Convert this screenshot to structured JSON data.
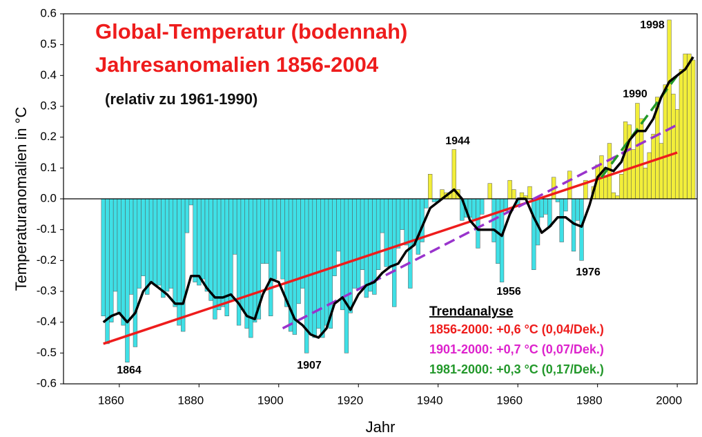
{
  "chart_data": {
    "type": "bar",
    "title": "Global-Temperatur (bodennah)",
    "title2": "Jahresanomalien 1856-2004",
    "subtitle": "(relativ zu 1961-1990)",
    "ylabel": "Temperaturanomalien in °C",
    "xlabel": "Jahr",
    "positive_color": "#f2ee3a",
    "negative_color": "#3fe0e6",
    "xlim": [
      1846,
      2005
    ],
    "ylim": [
      -0.6,
      0.6
    ],
    "xticks": [
      1860,
      1880,
      1900,
      1920,
      1940,
      1960,
      1980,
      2000
    ],
    "yticks": [
      0.6,
      0.5,
      0.4,
      0.3,
      0.2,
      0.1,
      {
        "value": 0,
        "label": "0.0"
      },
      -0.1,
      -0.2,
      -0.3,
      -0.4,
      -0.5,
      -0.6
    ],
    "x": [
      1856,
      1857,
      1858,
      1859,
      1860,
      1861,
      1862,
      1863,
      1864,
      1865,
      1866,
      1867,
      1868,
      1869,
      1870,
      1871,
      1872,
      1873,
      1874,
      1875,
      1876,
      1877,
      1878,
      1879,
      1880,
      1881,
      1882,
      1883,
      1884,
      1885,
      1886,
      1887,
      1888,
      1889,
      1890,
      1891,
      1892,
      1893,
      1894,
      1895,
      1896,
      1897,
      1898,
      1899,
      1900,
      1901,
      1902,
      1903,
      1904,
      1905,
      1906,
      1907,
      1908,
      1909,
      1910,
      1911,
      1912,
      1913,
      1914,
      1915,
      1916,
      1917,
      1918,
      1919,
      1920,
      1921,
      1922,
      1923,
      1924,
      1925,
      1926,
      1927,
      1928,
      1929,
      1930,
      1931,
      1932,
      1933,
      1934,
      1935,
      1936,
      1937,
      1938,
      1939,
      1940,
      1941,
      1942,
      1943,
      1944,
      1945,
      1946,
      1947,
      1948,
      1949,
      1950,
      1951,
      1952,
      1953,
      1954,
      1955,
      1956,
      1957,
      1958,
      1959,
      1960,
      1961,
      1962,
      1963,
      1964,
      1965,
      1966,
      1967,
      1968,
      1969,
      1970,
      1971,
      1972,
      1973,
      1974,
      1975,
      1976,
      1977,
      1978,
      1979,
      1980,
      1981,
      1982,
      1983,
      1984,
      1985,
      1986,
      1987,
      1988,
      1989,
      1990,
      1991,
      1992,
      1993,
      1994,
      1995,
      1996,
      1997,
      1998,
      1999,
      2000,
      2001,
      2002,
      2003,
      2004
    ],
    "values": [
      -0.38,
      -0.47,
      -0.4,
      -0.3,
      -0.37,
      -0.41,
      -0.53,
      -0.31,
      -0.48,
      -0.29,
      -0.25,
      -0.31,
      -0.27,
      -0.28,
      -0.28,
      -0.32,
      -0.3,
      -0.29,
      -0.35,
      -0.41,
      -0.43,
      -0.11,
      -0.02,
      -0.27,
      -0.28,
      -0.26,
      -0.3,
      -0.33,
      -0.39,
      -0.36,
      -0.35,
      -0.38,
      -0.33,
      -0.18,
      -0.41,
      -0.36,
      -0.42,
      -0.45,
      -0.4,
      -0.39,
      -0.21,
      -0.21,
      -0.38,
      -0.26,
      -0.17,
      -0.26,
      -0.35,
      -0.43,
      -0.44,
      -0.34,
      -0.29,
      -0.5,
      -0.44,
      -0.45,
      -0.42,
      -0.45,
      -0.41,
      -0.42,
      -0.25,
      -0.17,
      -0.36,
      -0.5,
      -0.37,
      -0.29,
      -0.29,
      -0.23,
      -0.32,
      -0.3,
      -0.31,
      -0.23,
      -0.11,
      -0.22,
      -0.22,
      -0.35,
      -0.16,
      -0.1,
      -0.15,
      -0.29,
      -0.15,
      -0.18,
      -0.14,
      -0.03,
      0.08,
      -0.01,
      -0.01,
      0.03,
      0.02,
      0.02,
      0.16,
      0.03,
      -0.07,
      -0.06,
      -0.06,
      -0.07,
      -0.16,
      -0.05,
      0.0,
      0.05,
      -0.14,
      -0.21,
      -0.27,
      -0.04,
      0.06,
      0.03,
      -0.02,
      0.02,
      0.01,
      0.04,
      -0.23,
      -0.15,
      -0.06,
      -0.05,
      -0.09,
      0.07,
      -0.01,
      -0.14,
      -0.04,
      0.09,
      -0.17,
      -0.07,
      -0.2,
      0.06,
      0.0,
      0.04,
      0.11,
      0.14,
      0.07,
      0.18,
      0.02,
      0.01,
      0.08,
      0.25,
      0.24,
      0.16,
      0.31,
      0.26,
      0.1,
      0.15,
      0.21,
      0.33,
      0.18,
      0.37,
      0.58,
      0.34,
      0.29,
      0.42,
      0.47,
      0.47,
      0.45
    ],
    "smooth": {
      "color": "#000000",
      "x": [
        1856,
        1858,
        1860,
        1862,
        1864,
        1866,
        1868,
        1870,
        1872,
        1874,
        1876,
        1878,
        1880,
        1882,
        1884,
        1886,
        1888,
        1890,
        1892,
        1894,
        1896,
        1898,
        1900,
        1902,
        1904,
        1906,
        1908,
        1910,
        1912,
        1914,
        1916,
        1918,
        1920,
        1922,
        1924,
        1926,
        1928,
        1930,
        1932,
        1934,
        1936,
        1938,
        1940,
        1942,
        1944,
        1946,
        1948,
        1950,
        1952,
        1954,
        1956,
        1958,
        1960,
        1962,
        1964,
        1966,
        1968,
        1970,
        1972,
        1974,
        1976,
        1978,
        1980,
        1982,
        1984,
        1986,
        1988,
        1990,
        1992,
        1994,
        1996,
        1998,
        2000,
        2002,
        2004
      ],
      "values": [
        -0.4,
        -0.38,
        -0.37,
        -0.4,
        -0.37,
        -0.3,
        -0.27,
        -0.29,
        -0.31,
        -0.34,
        -0.34,
        -0.25,
        -0.25,
        -0.29,
        -0.32,
        -0.32,
        -0.31,
        -0.34,
        -0.38,
        -0.39,
        -0.31,
        -0.26,
        -0.27,
        -0.33,
        -0.39,
        -0.41,
        -0.44,
        -0.45,
        -0.42,
        -0.34,
        -0.32,
        -0.36,
        -0.31,
        -0.28,
        -0.27,
        -0.24,
        -0.22,
        -0.21,
        -0.17,
        -0.15,
        -0.09,
        -0.03,
        -0.01,
        0.01,
        0.03,
        0.0,
        -0.07,
        -0.1,
        -0.1,
        -0.1,
        -0.12,
        -0.05,
        0.0,
        0.0,
        -0.06,
        -0.11,
        -0.09,
        -0.06,
        -0.06,
        -0.08,
        -0.09,
        -0.02,
        0.07,
        0.1,
        0.09,
        0.12,
        0.19,
        0.22,
        0.22,
        0.26,
        0.33,
        0.38,
        0.4,
        0.42,
        0.46
      ]
    },
    "legend_title": "Trendanalyse",
    "trends": [
      {
        "name": "1856-2000: +0,6 °C (0,04/Dek.)",
        "color": "#ee1c1c",
        "text_color": "#ee1c1c",
        "dashed": false,
        "x": [
          1856,
          2000
        ],
        "values": [
          -0.47,
          0.15
        ]
      },
      {
        "name": "1901-2000: +0,7 °C (0,07/Dek.)",
        "color": "#9933cc",
        "text_color": "#dd22cc",
        "dashed": true,
        "x": [
          1901,
          2000
        ],
        "values": [
          -0.42,
          0.24
        ]
      },
      {
        "name": "1981-2000: +0,3 °C (0,17/Dek.)",
        "color": "#22992a",
        "text_color": "#22992a",
        "dashed": true,
        "x": [
          1981,
          2000
        ],
        "values": [
          0.07,
          0.4
        ]
      }
    ],
    "annotations": [
      "1864",
      "1907",
      "1944",
      "1956",
      "1976",
      "1990",
      "1998"
    ]
  }
}
